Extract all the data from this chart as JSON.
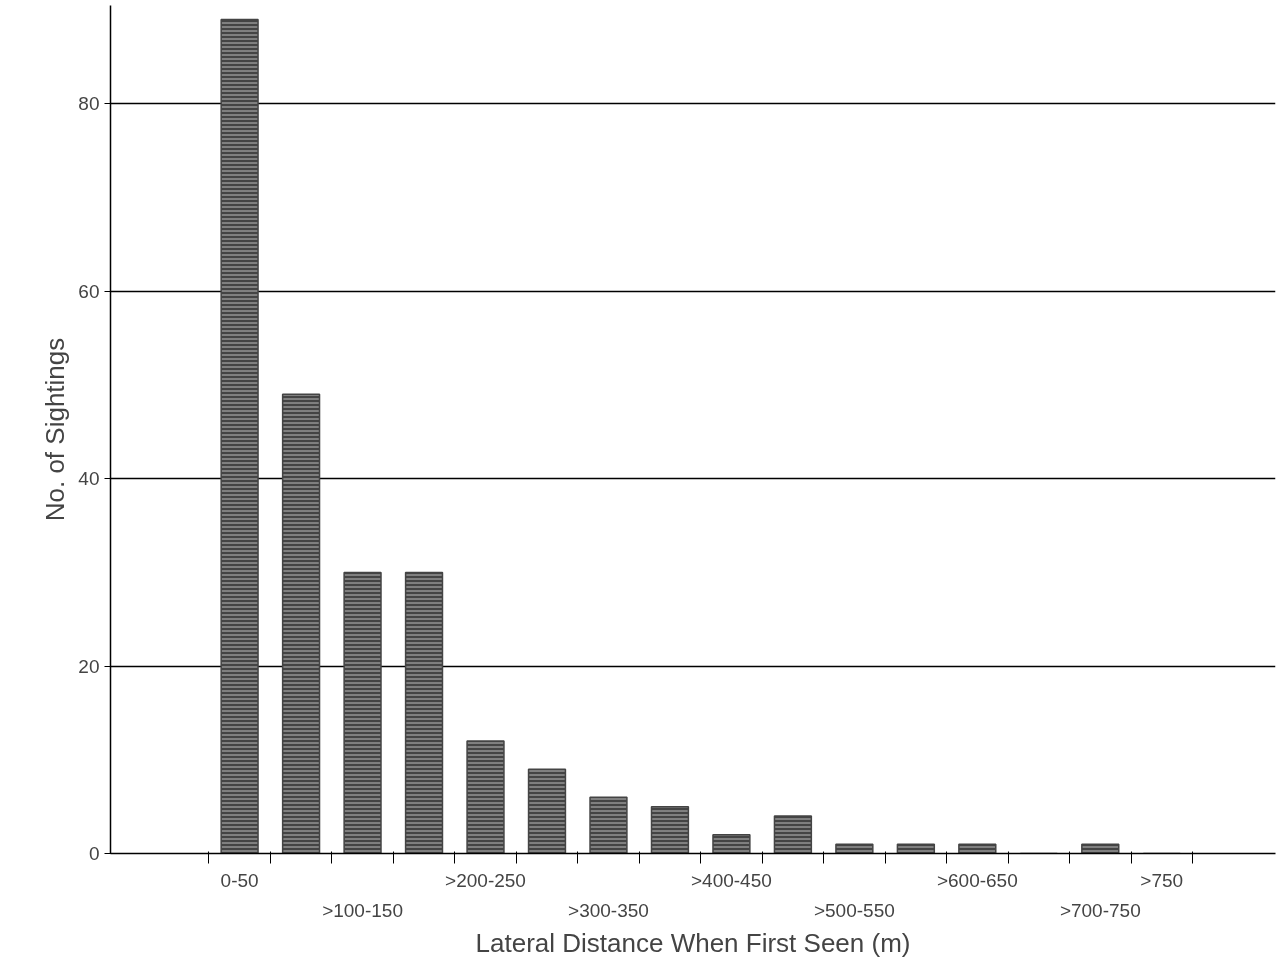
{
  "chart_data": {
    "type": "bar",
    "xlabel": "Lateral Distance When First Seen (m)",
    "ylabel": "No. of Sightings",
    "categories": [
      "0-50",
      null,
      ">100-150",
      null,
      ">200-250",
      null,
      ">300-350",
      null,
      ">400-450",
      null,
      ">500-550",
      null,
      ">600-650",
      null,
      ">700-750",
      ">750"
    ],
    "values": [
      89,
      49,
      30,
      30,
      12,
      9,
      6,
      5,
      2,
      4,
      1,
      1,
      1,
      0,
      1,
      0
    ],
    "color": "#444444",
    "ylim": [
      0,
      90.5
    ],
    "yticks": [
      0,
      20,
      40,
      60,
      80
    ],
    "grid": "y"
  }
}
